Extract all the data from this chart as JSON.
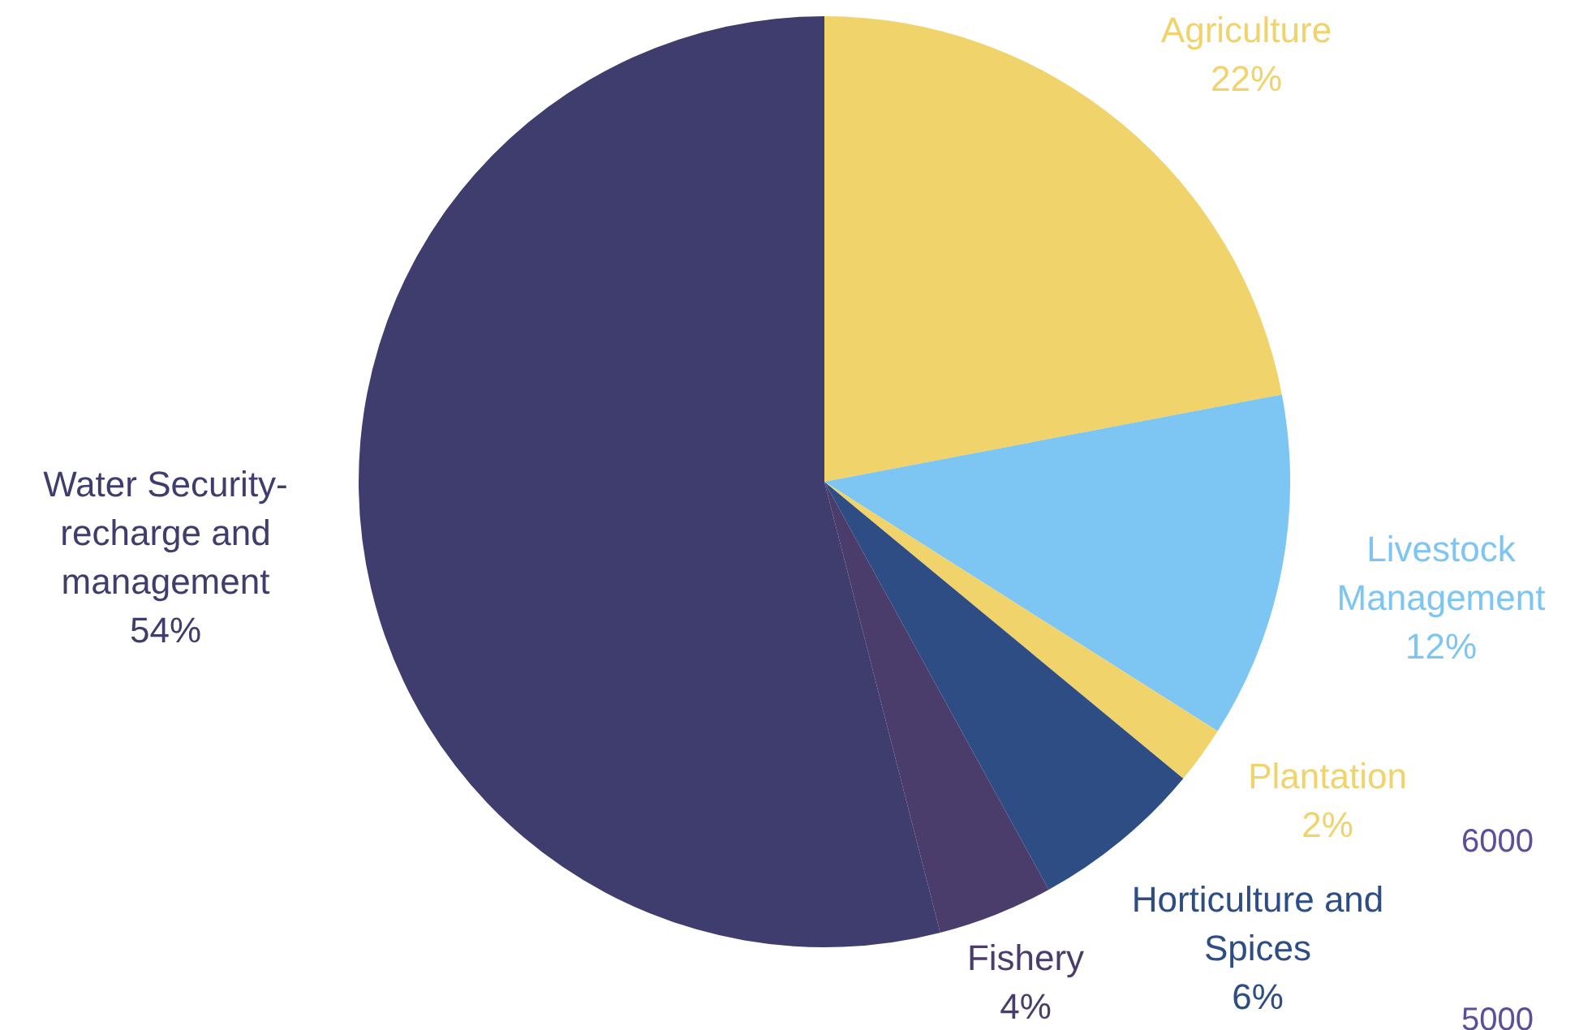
{
  "chart_data": {
    "type": "pie",
    "categories": [
      "Agriculture",
      "Livestock Management",
      "Plantation",
      "Horticulture and Spices",
      "Fishery",
      "Water Security-recharge and management"
    ],
    "values": [
      22,
      12,
      2,
      6,
      4,
      54
    ],
    "value_labels": [
      "22%",
      "12%",
      "2%",
      "6%",
      "4%",
      "54%"
    ],
    "colors": [
      "#f1d36b",
      "#7dc5f2",
      "#f1d36b",
      "#2e4d85",
      "#4a3d6b",
      "#3f3d6e"
    ],
    "legend": false,
    "annotations": [
      "6000",
      "5000"
    ]
  }
}
